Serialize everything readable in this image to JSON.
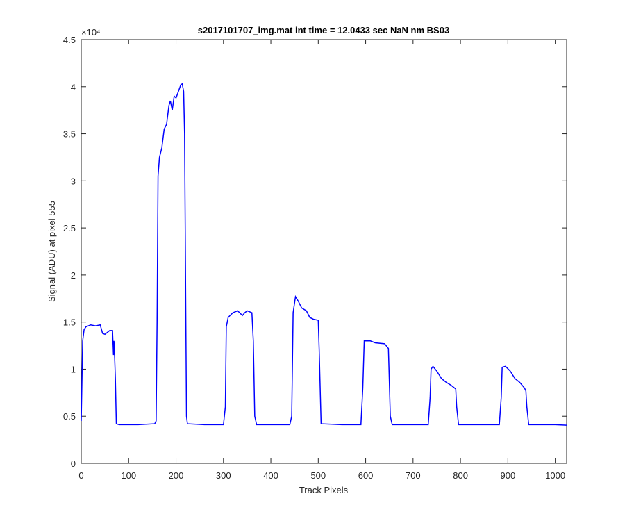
{
  "chart_data": {
    "type": "line",
    "title": "s2017101707_img.mat int time = 12.0433 sec  NaN nm BS03",
    "xlabel": "Track Pixels",
    "ylabel": "Signal (ADU) at pixel 555",
    "y_exponent_label": "×10⁴",
    "color": "#0000ff",
    "xlim": [
      0,
      1024
    ],
    "ylim": [
      0,
      4.5
    ],
    "xticks": [
      0,
      100,
      200,
      300,
      400,
      500,
      600,
      700,
      800,
      900,
      1000
    ],
    "yticks": [
      0,
      0.5,
      1,
      1.5,
      2,
      2.5,
      3,
      3.5,
      4,
      4.5
    ],
    "x": [
      0,
      3,
      6,
      10,
      20,
      30,
      40,
      45,
      50,
      55,
      60,
      66,
      68,
      69,
      70,
      72,
      74,
      80,
      120,
      155,
      158,
      160,
      162,
      165,
      170,
      175,
      180,
      185,
      188,
      192,
      196,
      200,
      205,
      210,
      213,
      216,
      218,
      220,
      222,
      224,
      260,
      300,
      304,
      306,
      310,
      320,
      330,
      340,
      345,
      350,
      360,
      363,
      366,
      370,
      440,
      444,
      447,
      452,
      458,
      465,
      475,
      482,
      490,
      500,
      502,
      506,
      550,
      590,
      594,
      597,
      610,
      620,
      640,
      648,
      652,
      656,
      690,
      732,
      736,
      738,
      742,
      750,
      760,
      770,
      780,
      790,
      792,
      796,
      830,
      882,
      886,
      888,
      895,
      905,
      915,
      925,
      935,
      938,
      940,
      944,
      1000,
      1024
    ],
    "values": [
      0.45,
      1.3,
      1.42,
      1.45,
      1.47,
      1.46,
      1.47,
      1.38,
      1.37,
      1.39,
      1.41,
      1.41,
      1.15,
      1.3,
      1.2,
      0.9,
      0.42,
      0.41,
      0.41,
      0.42,
      0.45,
      1.5,
      3.05,
      3.25,
      3.35,
      3.55,
      3.6,
      3.8,
      3.85,
      3.75,
      3.9,
      3.88,
      3.95,
      4.02,
      4.03,
      3.95,
      3.5,
      2.0,
      0.5,
      0.42,
      0.41,
      0.41,
      0.6,
      1.45,
      1.55,
      1.6,
      1.62,
      1.57,
      1.6,
      1.62,
      1.6,
      1.3,
      0.5,
      0.41,
      0.41,
      0.5,
      1.6,
      1.77,
      1.72,
      1.65,
      1.62,
      1.55,
      1.53,
      1.52,
      1.2,
      0.42,
      0.41,
      0.41,
      0.8,
      1.3,
      1.3,
      1.28,
      1.27,
      1.22,
      0.5,
      0.41,
      0.41,
      0.41,
      0.7,
      1.0,
      1.03,
      0.98,
      0.9,
      0.86,
      0.83,
      0.79,
      0.6,
      0.41,
      0.41,
      0.41,
      0.7,
      1.02,
      1.03,
      0.98,
      0.9,
      0.86,
      0.8,
      0.77,
      0.6,
      0.41,
      0.41,
      0.405
    ]
  }
}
